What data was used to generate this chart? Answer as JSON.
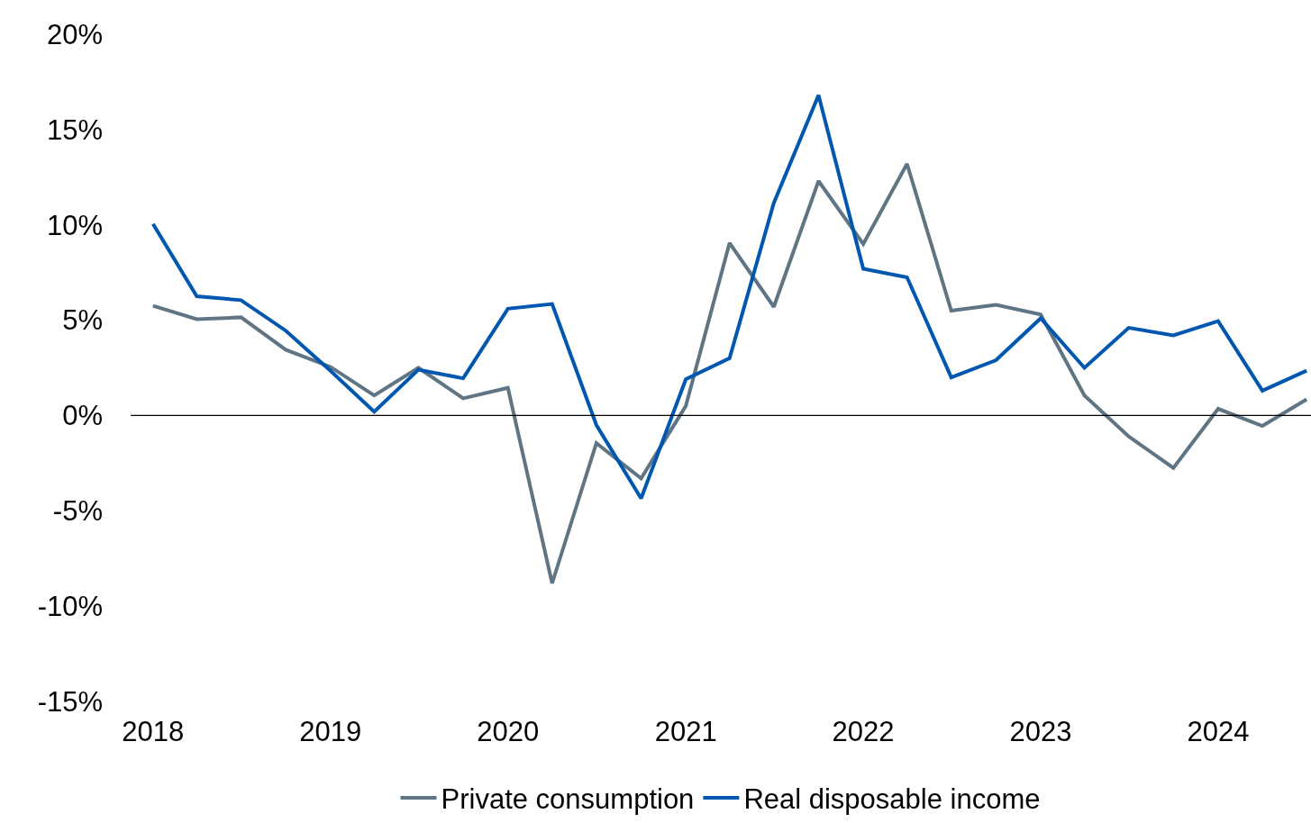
{
  "chart_data": {
    "type": "line",
    "x": [
      "2018-01",
      "2018-04",
      "2018-07",
      "2018-10",
      "2019-01",
      "2019-04",
      "2019-07",
      "2019-10",
      "2020-01",
      "2020-04",
      "2020-07",
      "2020-10",
      "2021-01",
      "2021-04",
      "2021-07",
      "2021-10",
      "2022-01",
      "2022-04",
      "2022-07",
      "2022-10",
      "2023-01",
      "2023-04",
      "2023-07",
      "2023-10",
      "2024-01",
      "2024-04",
      "2024-07"
    ],
    "series": [
      {
        "name": "Private consumption",
        "color": "#5f7584",
        "values": [
          5.75,
          5.05,
          5.15,
          3.45,
          2.55,
          1.05,
          2.5,
          0.9,
          1.45,
          -8.8,
          -1.45,
          -3.3,
          0.5,
          9.05,
          5.7,
          12.3,
          9.0,
          13.2,
          5.5,
          5.8,
          5.3,
          1.05,
          -1.1,
          -2.75,
          0.35,
          -0.55,
          0.85
        ]
      },
      {
        "name": "Real disposable income",
        "color": "#0057b0",
        "values": [
          10.05,
          6.25,
          6.05,
          4.45,
          2.35,
          0.2,
          2.4,
          1.95,
          5.6,
          5.85,
          -0.5,
          -4.35,
          1.9,
          3.0,
          11.15,
          16.8,
          7.7,
          7.25,
          2.0,
          2.9,
          5.1,
          2.5,
          4.6,
          4.2,
          4.95,
          1.3,
          2.35
        ]
      }
    ],
    "xlim": [
      "2017-11-16",
      "2024-07-10"
    ],
    "xticks": [
      {
        "value": "2018",
        "label": "2018"
      },
      {
        "value": "2019",
        "label": "2019"
      },
      {
        "value": "2020",
        "label": "2020"
      },
      {
        "value": "2021",
        "label": "2021"
      },
      {
        "value": "2022",
        "label": "2022"
      },
      {
        "value": "2023",
        "label": "2023"
      },
      {
        "value": "2024",
        "label": "2024"
      }
    ],
    "ylim": [
      -15,
      20
    ],
    "yticks": [
      {
        "value": -15,
        "label": "-15%"
      },
      {
        "value": -10,
        "label": "-10%"
      },
      {
        "value": -5,
        "label": "-5%"
      },
      {
        "value": 0,
        "label": "0%"
      },
      {
        "value": 5,
        "label": "5%"
      },
      {
        "value": 10,
        "label": "10%"
      },
      {
        "value": 15,
        "label": "15%"
      },
      {
        "value": 20,
        "label": "20%"
      }
    ],
    "ref_lines": [
      {
        "axis": "y",
        "value": 0,
        "color": "#000000"
      }
    ],
    "grid": false,
    "legend": "bottom",
    "marker": "none",
    "line_style": "solid"
  }
}
